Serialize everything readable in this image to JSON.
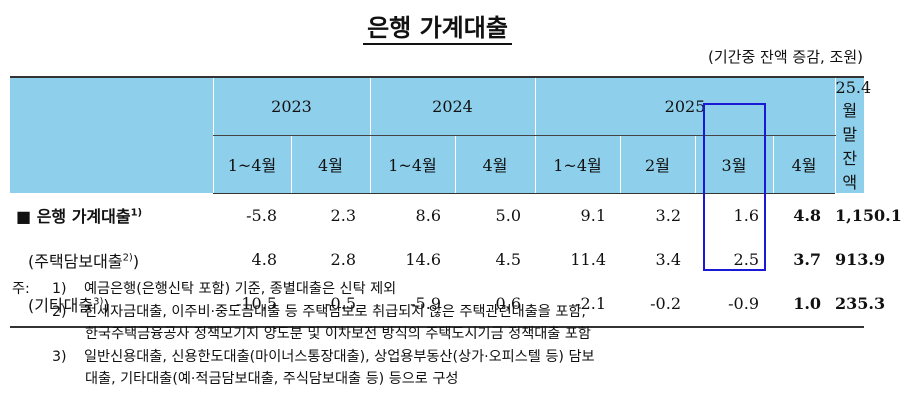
{
  "title": "은행 가계대출",
  "unit_note": "(기간중 잔액 증감, 조원)",
  "header": {
    "years": [
      "2023",
      "2024",
      "2025"
    ],
    "sub": [
      "1~4월",
      "4월",
      "1~4월",
      "4월",
      "1~4월",
      "2월",
      "3월",
      "4월"
    ],
    "balance_label_line1": "25.4월말",
    "balance_label_line2": "잔액"
  },
  "rows": [
    {
      "bullet": "■",
      "label": "은행 가계대출",
      "sup": "1)",
      "values": [
        "-5.8",
        "2.3",
        "8.6",
        "5.0",
        "9.1",
        "3.2",
        "1.6",
        "4.8",
        "1,150.1"
      ]
    },
    {
      "label": "(주택담보대출",
      "sup": "2)",
      "close": ")",
      "values": [
        "4.8",
        "2.8",
        "14.6",
        "4.5",
        "11.4",
        "3.4",
        "2.5",
        "3.7",
        "913.9"
      ]
    },
    {
      "label": "(기타대출",
      "sup": "3)",
      "close": ")",
      "values": [
        "-10.5",
        "-0.5",
        "-5.9",
        "0.6",
        "-2.1",
        "-0.2",
        "-0.9",
        "1.0",
        "235.3"
      ]
    }
  ],
  "notes": {
    "prefix": "주:",
    "n1_num": "1)",
    "n1": "예금은행(은행신탁 포함) 기준, 종별대출은 신탁 제외",
    "n2_num": "2)",
    "n2a": "전세자금대출, 이주비·중도금대출 등 주택담보로 취급되지 않은 주택관련대출을 포함,",
    "n2b": "한국주택금융공사 정책모기지 양도분 및 이차보전 방식의 주택도시기금 정책대출 포함",
    "n3_num": "3)",
    "n3a": "일반신용대출, 신용한도대출(마이너스통장대출), 상업용부동산(상가·오피스텔 등) 담보",
    "n3b": "대출, 기타대출(예·적금담보대출, 주식담보대출 등) 등으로 구성"
  }
}
